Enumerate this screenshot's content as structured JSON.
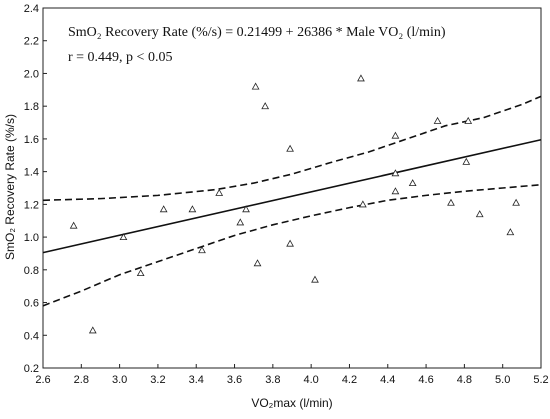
{
  "chart_data": {
    "type": "scatter",
    "xlabel": "VO₂max (l/min)",
    "ylabel": "SmO₂ Recovery Rate (%/s)",
    "xlim": [
      2.6,
      5.2
    ],
    "ylim": [
      0.2,
      2.4
    ],
    "x_ticks": [
      "2.6",
      "2.8",
      "3.0",
      "3.2",
      "3.4",
      "3.6",
      "3.8",
      "4.0",
      "4.2",
      "4.4",
      "4.6",
      "4.8",
      "5.0",
      "5.2"
    ],
    "y_ticks": [
      "0.2",
      "0.4",
      "0.6",
      "0.8",
      "1.0",
      "1.2",
      "1.4",
      "1.6",
      "1.8",
      "2.0",
      "2.2",
      "2.4"
    ],
    "grid": false,
    "marker": "open-triangle",
    "annotations": [
      "SmO₂ Recovery Rate (%/s) = 0.21499 + 26386 * Male VO₂ (l/min)",
      "r = 0.449, p < 0.05"
    ],
    "regression_line": {
      "x": [
        2.6,
        5.2
      ],
      "y": [
        0.905,
        1.595
      ]
    },
    "ci_upper": {
      "x": [
        2.6,
        2.9,
        3.2,
        3.5,
        3.7,
        3.9,
        4.1,
        4.3,
        4.5,
        4.7,
        4.9,
        5.1,
        5.2
      ],
      "y": [
        1.225,
        1.235,
        1.255,
        1.29,
        1.33,
        1.385,
        1.455,
        1.52,
        1.6,
        1.68,
        1.73,
        1.81,
        1.86
      ]
    },
    "ci_lower": {
      "x": [
        2.6,
        2.8,
        3.0,
        3.2,
        3.4,
        3.6,
        3.8,
        4.0,
        4.2,
        4.4,
        4.6,
        4.8,
        5.0,
        5.2
      ],
      "y": [
        0.58,
        0.67,
        0.77,
        0.85,
        0.93,
        1.01,
        1.075,
        1.13,
        1.18,
        1.225,
        1.255,
        1.28,
        1.3,
        1.32
      ]
    },
    "points": [
      {
        "x": 2.76,
        "y": 1.07
      },
      {
        "x": 2.86,
        "y": 0.43
      },
      {
        "x": 3.02,
        "y": 1.0
      },
      {
        "x": 3.11,
        "y": 0.78
      },
      {
        "x": 3.23,
        "y": 1.17
      },
      {
        "x": 3.38,
        "y": 1.17
      },
      {
        "x": 3.43,
        "y": 0.92
      },
      {
        "x": 3.52,
        "y": 1.27
      },
      {
        "x": 3.63,
        "y": 1.09
      },
      {
        "x": 3.66,
        "y": 1.17
      },
      {
        "x": 3.71,
        "y": 1.92
      },
      {
        "x": 3.72,
        "y": 0.84
      },
      {
        "x": 3.76,
        "y": 1.8
      },
      {
        "x": 3.89,
        "y": 1.54
      },
      {
        "x": 3.89,
        "y": 0.96
      },
      {
        "x": 4.02,
        "y": 0.74
      },
      {
        "x": 4.26,
        "y": 1.97
      },
      {
        "x": 4.27,
        "y": 1.2
      },
      {
        "x": 4.44,
        "y": 1.62
      },
      {
        "x": 4.44,
        "y": 1.39
      },
      {
        "x": 4.44,
        "y": 1.28
      },
      {
        "x": 4.53,
        "y": 1.33
      },
      {
        "x": 4.66,
        "y": 1.71
      },
      {
        "x": 4.73,
        "y": 1.21
      },
      {
        "x": 4.81,
        "y": 1.46
      },
      {
        "x": 4.82,
        "y": 1.71
      },
      {
        "x": 4.88,
        "y": 1.14
      },
      {
        "x": 5.04,
        "y": 1.03
      },
      {
        "x": 5.07,
        "y": 1.21
      }
    ]
  }
}
